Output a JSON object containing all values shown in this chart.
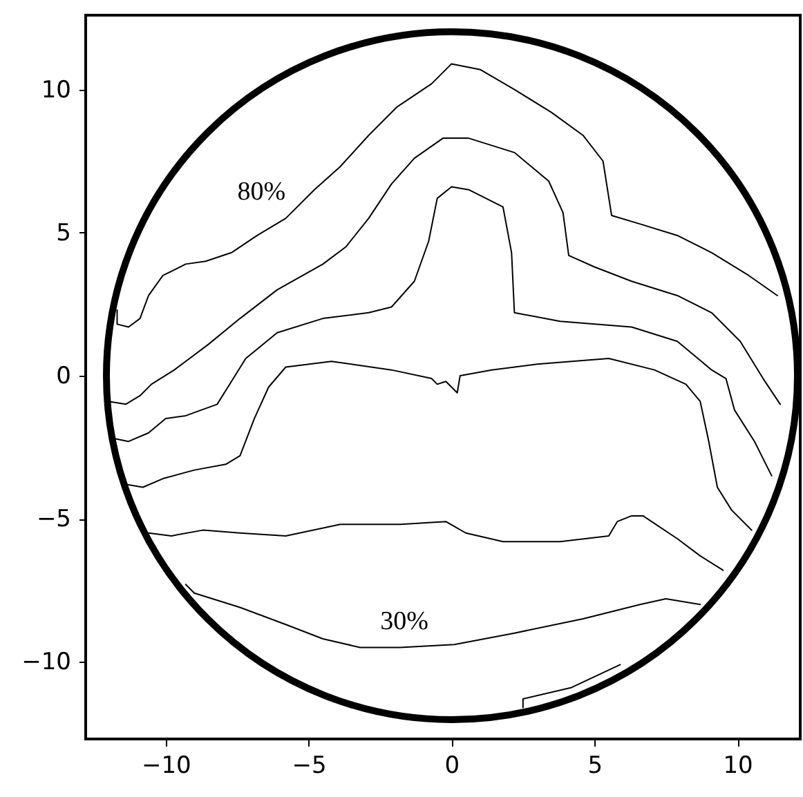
{
  "chart_data": {
    "type": "line",
    "xlim": [
      -12.8,
      12.2
    ],
    "ylim": [
      -12.7,
      12.6
    ],
    "xticks": [
      -10,
      -5,
      0,
      5,
      10
    ],
    "yticks": [
      -10,
      -5,
      0,
      5,
      10
    ],
    "grid": false,
    "annotations": [
      "80%",
      "30%"
    ],
    "series": [
      {
        "color": "#000000",
        "x": [
          -11.7,
          -11.7,
          -11.3,
          -10.9,
          -10.6,
          -10.1,
          -9.3,
          -8.6,
          -7.7,
          -6.8,
          -5.8,
          -4.8,
          -3.9,
          -2.9,
          -1.9,
          -0.7,
          0.0,
          1.0,
          2.2,
          3.5,
          4.6,
          5.3,
          5.6,
          6.6,
          7.9,
          9.1,
          10.4,
          11.4
        ],
        "values": [
          2.3,
          1.8,
          1.7,
          2.0,
          2.8,
          3.5,
          3.9,
          4.0,
          4.3,
          4.9,
          5.5,
          6.5,
          7.3,
          8.4,
          9.4,
          10.2,
          10.9,
          10.7,
          10.0,
          9.2,
          8.4,
          7.5,
          5.6,
          5.3,
          4.9,
          4.3,
          3.5,
          2.8
        ]
      },
      {
        "color": "#000000",
        "x": [
          -12.0,
          -11.4,
          -10.9,
          -10.5,
          -9.7,
          -8.5,
          -7.4,
          -6.1,
          -4.5,
          -3.7,
          -2.9,
          -2.1,
          -1.3,
          -0.3,
          0.6,
          2.2,
          3.4,
          3.9,
          4.1,
          5.0,
          6.3,
          7.9,
          9.1,
          10.1,
          10.9,
          11.5
        ],
        "values": [
          -0.9,
          -1.0,
          -0.7,
          -0.3,
          0.2,
          1.1,
          2.0,
          3.0,
          3.9,
          4.5,
          5.5,
          6.7,
          7.6,
          8.3,
          8.3,
          7.8,
          6.8,
          5.7,
          4.2,
          3.8,
          3.3,
          2.8,
          2.2,
          1.2,
          -0.1,
          -1.0
        ]
      },
      {
        "color": "#000000",
        "x": [
          -11.8,
          -11.3,
          -10.6,
          -10.0,
          -9.3,
          -8.2,
          -7.7,
          -7.2,
          -6.1,
          -4.5,
          -2.9,
          -2.1,
          -1.3,
          -0.8,
          -0.5,
          0.0,
          0.6,
          1.8,
          2.1,
          2.2,
          3.8,
          6.3,
          7.9,
          9.1,
          9.6,
          9.9,
          10.6,
          11.2
        ],
        "values": [
          -2.2,
          -2.3,
          -2.0,
          -1.5,
          -1.4,
          -1.0,
          -0.2,
          0.6,
          1.5,
          2.0,
          2.2,
          2.4,
          3.3,
          4.7,
          6.2,
          6.6,
          6.5,
          5.9,
          4.3,
          2.2,
          1.9,
          1.7,
          1.2,
          0.2,
          -0.1,
          -1.2,
          -2.3,
          -3.5
        ]
      },
      {
        "color": "#000000",
        "x": [
          -11.4,
          -10.8,
          -10.1,
          -9.0,
          -7.9,
          -7.4,
          -6.9,
          -6.4,
          -5.8,
          -4.2,
          -2.1,
          -0.7,
          -0.5,
          -0.2,
          0.2,
          0.3,
          1.4,
          3.0,
          5.5,
          7.1,
          8.2,
          8.7,
          9.0,
          9.3,
          9.8,
          10.5
        ],
        "values": [
          -3.8,
          -3.9,
          -3.6,
          -3.3,
          -3.1,
          -2.8,
          -1.5,
          -0.4,
          0.3,
          0.5,
          0.2,
          -0.1,
          -0.3,
          -0.2,
          -0.6,
          0.0,
          0.2,
          0.4,
          0.6,
          0.2,
          -0.3,
          -0.9,
          -2.3,
          -3.9,
          -4.7,
          -5.4
        ]
      },
      {
        "color": "#000000",
        "x": [
          -10.6,
          -9.8,
          -8.7,
          -7.4,
          -5.8,
          -3.9,
          -1.8,
          -0.2,
          0.5,
          1.8,
          3.8,
          5.5,
          5.8,
          6.3,
          6.7,
          7.9,
          8.7,
          9.5
        ],
        "values": [
          -5.5,
          -5.6,
          -5.4,
          -5.5,
          -5.6,
          -5.2,
          -5.2,
          -5.1,
          -5.5,
          -5.8,
          -5.8,
          -5.6,
          -5.1,
          -4.9,
          -4.9,
          -5.7,
          -6.3,
          -6.8
        ]
      },
      {
        "color": "#000000",
        "x": [
          -9.3,
          -9.0,
          -7.4,
          -5.8,
          -4.5,
          -3.2,
          -1.8,
          0.1,
          2.2,
          4.6,
          6.6,
          7.5,
          8.7
        ],
        "values": [
          -7.3,
          -7.6,
          -8.1,
          -8.7,
          -9.2,
          -9.5,
          -9.5,
          -9.4,
          -9.0,
          -8.5,
          -8.0,
          -7.8,
          -8.0
        ]
      },
      {
        "color": "#000000",
        "x": [
          2.5,
          2.5,
          4.2,
          5.9
        ],
        "values": [
          -11.6,
          -11.3,
          -10.9,
          -10.1
        ]
      }
    ]
  }
}
